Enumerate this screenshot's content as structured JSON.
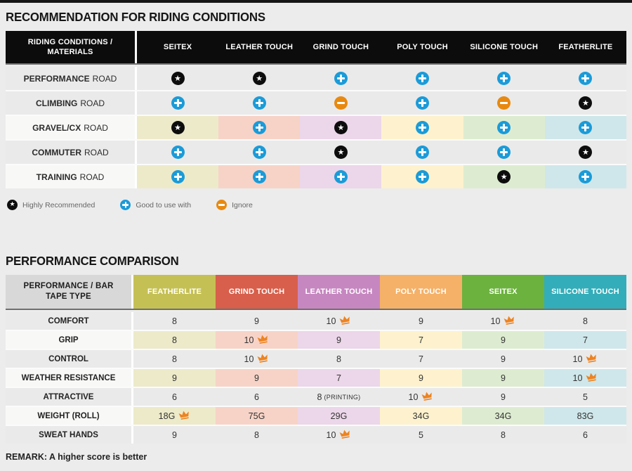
{
  "colors": {
    "page_bg": "#ececec",
    "top_bar": "#161616",
    "table1_header_bg": "#0c0c0c",
    "gray_row": "#eaeaea",
    "highlight_label": "#f8f8f7",
    "pale_row": [
      "#edeaca",
      "#f7d3c7",
      "#ecd6e9",
      "#fdf2cd",
      "#ddecd0",
      "#cfe7ea"
    ],
    "star": "#0d0d0d",
    "plus": "#1b9bd8",
    "minus": "#e8890f",
    "crown": "#ee8320",
    "rule": "#6f6f6f"
  },
  "chart_data": [
    {
      "type": "table",
      "title": "RECOMMENDATION FOR RIDING CONDITIONS",
      "corner_header": "RIDING CONDITIONS / MATERIALS",
      "columns": [
        "SEITEX",
        "LEATHER TOUCH",
        "GRIND TOUCH",
        "POLY TOUCH",
        "SILICONE TOUCH",
        "FEATHERLITE"
      ],
      "rows": [
        {
          "label": "PERFORMANCE",
          "label_suffix": "ROAD",
          "highlighted": false,
          "ratings": [
            "star",
            "star",
            "plus",
            "plus",
            "plus",
            "plus"
          ]
        },
        {
          "label": "CLIMBING",
          "label_suffix": "ROAD",
          "highlighted": false,
          "ratings": [
            "plus",
            "plus",
            "minus",
            "plus",
            "minus",
            "star"
          ]
        },
        {
          "label": "GRAVEL/CX",
          "label_suffix": "ROAD",
          "highlighted": true,
          "ratings": [
            "star",
            "plus",
            "star",
            "plus",
            "plus",
            "plus"
          ]
        },
        {
          "label": "COMMUTER",
          "label_suffix": "ROAD",
          "highlighted": false,
          "ratings": [
            "plus",
            "plus",
            "star",
            "plus",
            "plus",
            "star"
          ]
        },
        {
          "label": "TRAINING",
          "label_suffix": "ROAD",
          "highlighted": true,
          "ratings": [
            "plus",
            "plus",
            "plus",
            "plus",
            "star",
            "plus"
          ]
        }
      ],
      "legend": [
        {
          "icon": "star",
          "label": "Highly Recommended"
        },
        {
          "icon": "plus",
          "label": "Good to use with"
        },
        {
          "icon": "minus",
          "label": "Ignore"
        }
      ]
    },
    {
      "type": "table",
      "title": "PERFORMANCE COMPARISON",
      "corner_header": "PERFORMANCE / BAR TAPE TYPE",
      "columns": [
        {
          "label": "FEATHERLITE",
          "color": "#c5c054"
        },
        {
          "label": "GRIND TOUCH",
          "color": "#d75f4b"
        },
        {
          "label": "LEATHER TOUCH",
          "color": "#c687c0"
        },
        {
          "label": "POLY TOUCH",
          "color": "#f5b168"
        },
        {
          "label": "SEITEX",
          "color": "#6cb23f"
        },
        {
          "label": "SILICONE TOUCH",
          "color": "#33adb9"
        }
      ],
      "rows": [
        {
          "label": "COMFORT",
          "highlighted": false,
          "values": [
            {
              "v": "8"
            },
            {
              "v": "9"
            },
            {
              "v": "10",
              "best": true
            },
            {
              "v": "9"
            },
            {
              "v": "10",
              "best": true
            },
            {
              "v": "8"
            }
          ]
        },
        {
          "label": "GRIP",
          "highlighted": true,
          "values": [
            {
              "v": "8"
            },
            {
              "v": "10",
              "best": true
            },
            {
              "v": "9"
            },
            {
              "v": "7"
            },
            {
              "v": "9"
            },
            {
              "v": "7"
            }
          ]
        },
        {
          "label": "CONTROL",
          "highlighted": false,
          "values": [
            {
              "v": "8"
            },
            {
              "v": "10",
              "best": true
            },
            {
              "v": "8"
            },
            {
              "v": "7"
            },
            {
              "v": "9"
            },
            {
              "v": "10",
              "best": true
            }
          ]
        },
        {
          "label": "WEATHER RESISTANCE",
          "highlighted": true,
          "values": [
            {
              "v": "9"
            },
            {
              "v": "9"
            },
            {
              "v": "7"
            },
            {
              "v": "9"
            },
            {
              "v": "9"
            },
            {
              "v": "10",
              "best": true
            }
          ]
        },
        {
          "label": "ATTRACTIVE",
          "highlighted": false,
          "values": [
            {
              "v": "6"
            },
            {
              "v": "6"
            },
            {
              "v": "8",
              "suffix": "(PRINTING)"
            },
            {
              "v": "10",
              "best": true
            },
            {
              "v": "9"
            },
            {
              "v": "5"
            }
          ]
        },
        {
          "label": "WEIGHT (ROLL)",
          "highlighted": true,
          "values": [
            {
              "v": "18G",
              "best": true
            },
            {
              "v": "75G"
            },
            {
              "v": "29G"
            },
            {
              "v": "34G"
            },
            {
              "v": "34G"
            },
            {
              "v": "83G"
            }
          ]
        },
        {
          "label": "SWEAT HANDS",
          "highlighted": false,
          "values": [
            {
              "v": "9"
            },
            {
              "v": "8"
            },
            {
              "v": "10",
              "best": true
            },
            {
              "v": "5"
            },
            {
              "v": "8"
            },
            {
              "v": "6"
            }
          ]
        }
      ],
      "remark": "REMARK: A higher score is better"
    }
  ]
}
